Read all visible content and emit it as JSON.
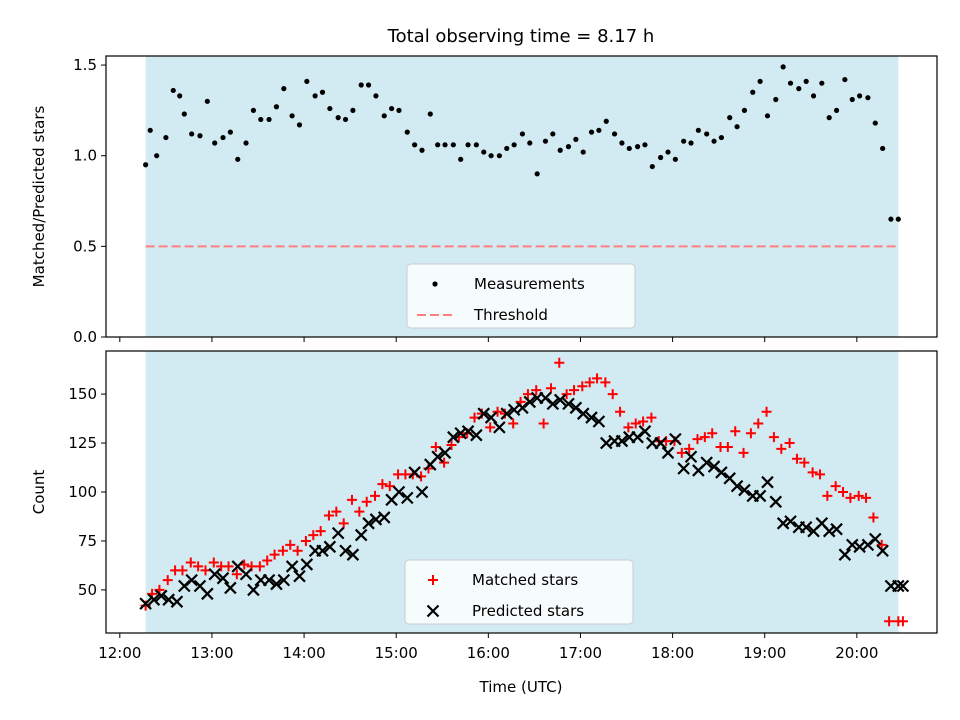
{
  "title": "Total observing time = 8.17 h",
  "xlabel": "Time (UTC)",
  "colors": {
    "band": "#add8e6",
    "threshold": "#ff7f7f",
    "matched": "#ff0000",
    "predicted": "#000000",
    "measurements": "#000000"
  },
  "chart_data": [
    {
      "type": "scatter",
      "ylabel": "Matched/Predicted stars",
      "ylim": [
        0,
        1.55
      ],
      "xlim": [
        11.85,
        20.87
      ],
      "yticks": [
        0.0,
        0.5,
        1.0,
        1.5
      ],
      "ytick_labels": [
        "0.0",
        "0.5",
        "1.0",
        "1.5"
      ],
      "observing_window": [
        12.28,
        20.45
      ],
      "threshold": 0.5,
      "legend_position": "lower-center",
      "series": [
        {
          "name": "Measurements",
          "marker": "dot",
          "x": [
            12.28,
            12.33,
            12.4,
            12.5,
            12.58,
            12.65,
            12.7,
            12.78,
            12.87,
            12.95,
            13.03,
            13.12,
            13.2,
            13.28,
            13.37,
            13.45,
            13.53,
            13.62,
            13.7,
            13.78,
            13.87,
            13.95,
            14.03,
            14.12,
            14.2,
            14.28,
            14.37,
            14.45,
            14.53,
            14.62,
            14.7,
            14.78,
            14.87,
            14.95,
            15.03,
            15.12,
            15.2,
            15.28,
            15.37,
            15.45,
            15.53,
            15.62,
            15.7,
            15.78,
            15.87,
            15.95,
            16.03,
            16.12,
            16.2,
            16.28,
            16.37,
            16.45,
            16.53,
            16.62,
            16.7,
            16.78,
            16.87,
            16.95,
            17.03,
            17.12,
            17.2,
            17.28,
            17.37,
            17.45,
            17.53,
            17.62,
            17.7,
            17.78,
            17.87,
            17.95,
            18.03,
            18.12,
            18.2,
            18.28,
            18.37,
            18.45,
            18.53,
            18.62,
            18.7,
            18.78,
            18.87,
            18.95,
            19.03,
            19.12,
            19.2,
            19.28,
            19.37,
            19.45,
            19.53,
            19.62,
            19.7,
            19.78,
            19.87,
            19.95,
            20.03,
            20.12,
            20.2,
            20.28,
            20.37,
            20.45
          ],
          "y": [
            0.95,
            1.14,
            1.0,
            1.1,
            1.36,
            1.33,
            1.23,
            1.12,
            1.11,
            1.3,
            1.07,
            1.1,
            1.13,
            0.98,
            1.07,
            1.25,
            1.2,
            1.2,
            1.27,
            1.37,
            1.22,
            1.17,
            1.41,
            1.33,
            1.35,
            1.26,
            1.21,
            1.2,
            1.25,
            1.39,
            1.39,
            1.33,
            1.22,
            1.26,
            1.25,
            1.13,
            1.06,
            1.03,
            1.23,
            1.06,
            1.06,
            1.06,
            0.98,
            1.06,
            1.06,
            1.02,
            1.0,
            1.0,
            1.04,
            1.06,
            1.12,
            1.07,
            0.9,
            1.08,
            1.12,
            1.03,
            1.05,
            1.09,
            1.02,
            1.13,
            1.14,
            1.19,
            1.12,
            1.07,
            1.04,
            1.05,
            1.06,
            0.94,
            0.99,
            1.02,
            0.98,
            1.08,
            1.07,
            1.14,
            1.12,
            1.08,
            1.1,
            1.21,
            1.16,
            1.25,
            1.35,
            1.41,
            1.22,
            1.31,
            1.49,
            1.4,
            1.37,
            1.41,
            1.33,
            1.4,
            1.21,
            1.25,
            1.42,
            1.31,
            1.33,
            1.32,
            1.18,
            1.04,
            0.65,
            0.65
          ]
        },
        {
          "name": "Threshold",
          "marker": "dashed-line"
        }
      ]
    },
    {
      "type": "scatter",
      "ylabel": "Count",
      "ylim": [
        28,
        172
      ],
      "xlim": [
        11.85,
        20.87
      ],
      "yticks": [
        50,
        75,
        100,
        125,
        150
      ],
      "ytick_labels": [
        "50",
        "75",
        "100",
        "125",
        "150"
      ],
      "xticks": [
        12,
        13,
        14,
        15,
        16,
        17,
        18,
        19,
        20
      ],
      "xtick_labels": [
        "12:00",
        "13:00",
        "14:00",
        "15:00",
        "16:00",
        "17:00",
        "18:00",
        "19:00",
        "20:00"
      ],
      "observing_window": [
        12.28,
        20.45
      ],
      "legend_position": "lower-center",
      "series": [
        {
          "name": "Matched stars",
          "marker": "plus",
          "x": [
            12.28,
            12.35,
            12.43,
            12.52,
            12.6,
            12.68,
            12.77,
            12.85,
            12.93,
            13.02,
            13.1,
            13.18,
            13.27,
            13.35,
            13.43,
            13.52,
            13.6,
            13.68,
            13.77,
            13.85,
            13.93,
            14.02,
            14.1,
            14.18,
            14.27,
            14.35,
            14.43,
            14.52,
            14.6,
            14.68,
            14.77,
            14.85,
            14.93,
            15.02,
            15.1,
            15.18,
            15.27,
            15.35,
            15.43,
            15.52,
            15.6,
            15.68,
            15.77,
            15.85,
            15.93,
            16.02,
            16.1,
            16.18,
            16.27,
            16.35,
            16.43,
            16.52,
            16.6,
            16.68,
            16.77,
            16.85,
            16.93,
            17.02,
            17.1,
            17.18,
            17.27,
            17.35,
            17.43,
            17.52,
            17.6,
            17.68,
            17.77,
            17.85,
            17.93,
            18.02,
            18.1,
            18.18,
            18.27,
            18.35,
            18.43,
            18.52,
            18.6,
            18.68,
            18.77,
            18.85,
            18.93,
            19.02,
            19.1,
            19.18,
            19.27,
            19.35,
            19.43,
            19.52,
            19.6,
            19.68,
            19.77,
            19.85,
            19.93,
            20.02,
            20.1,
            20.18,
            20.27,
            20.35,
            20.45,
            20.5
          ],
          "y": [
            42,
            48,
            50,
            55,
            60,
            60,
            64,
            62,
            60,
            64,
            62,
            62,
            58,
            63,
            62,
            62,
            65,
            68,
            70,
            73,
            70,
            75,
            78,
            80,
            88,
            90,
            84,
            96,
            90,
            95,
            98,
            104,
            103,
            109,
            109,
            109,
            108,
            112,
            123,
            115,
            124,
            128,
            130,
            138,
            140,
            133,
            141,
            140,
            135,
            146,
            150,
            152,
            135,
            153,
            166,
            150,
            152,
            154,
            156,
            158,
            156,
            150,
            141,
            133,
            135,
            136,
            138,
            126,
            126,
            126,
            120,
            122,
            127,
            128,
            130,
            123,
            123,
            131,
            120,
            130,
            135,
            141,
            128,
            122,
            125,
            117,
            115,
            110,
            109,
            98,
            103,
            100,
            97,
            98,
            97,
            87,
            73,
            34,
            34,
            34
          ]
        },
        {
          "name": "Predicted stars",
          "marker": "x",
          "x": [
            12.28,
            12.37,
            12.45,
            12.53,
            12.62,
            12.7,
            12.78,
            12.87,
            12.95,
            13.03,
            13.12,
            13.2,
            13.28,
            13.37,
            13.45,
            13.53,
            13.62,
            13.7,
            13.78,
            13.87,
            13.95,
            14.03,
            14.12,
            14.2,
            14.28,
            14.37,
            14.45,
            14.53,
            14.62,
            14.7,
            14.78,
            14.87,
            14.95,
            15.03,
            15.12,
            15.2,
            15.28,
            15.37,
            15.45,
            15.53,
            15.62,
            15.7,
            15.78,
            15.87,
            15.95,
            16.03,
            16.12,
            16.2,
            16.28,
            16.37,
            16.45,
            16.53,
            16.62,
            16.7,
            16.78,
            16.87,
            16.95,
            17.03,
            17.12,
            17.2,
            17.28,
            17.37,
            17.45,
            17.53,
            17.62,
            17.7,
            17.78,
            17.87,
            17.95,
            18.03,
            18.12,
            18.2,
            18.28,
            18.37,
            18.45,
            18.53,
            18.62,
            18.7,
            18.78,
            18.87,
            18.95,
            19.03,
            19.12,
            19.2,
            19.28,
            19.37,
            19.45,
            19.53,
            19.62,
            19.7,
            19.78,
            19.87,
            19.95,
            20.03,
            20.12,
            20.2,
            20.28,
            20.37,
            20.45,
            20.5
          ],
          "y": [
            43,
            45,
            47,
            45,
            44,
            52,
            55,
            52,
            48,
            58,
            56,
            51,
            62,
            58,
            50,
            55,
            55,
            53,
            55,
            62,
            57,
            63,
            70,
            70,
            72,
            79,
            70,
            68,
            78,
            84,
            86,
            87,
            96,
            100,
            97,
            110,
            100,
            114,
            118,
            120,
            128,
            130,
            131,
            129,
            140,
            138,
            133,
            140,
            142,
            143,
            146,
            148,
            148,
            145,
            147,
            145,
            143,
            140,
            138,
            136,
            125,
            126,
            126,
            128,
            128,
            131,
            125,
            125,
            120,
            127,
            112,
            118,
            111,
            115,
            113,
            110,
            107,
            103,
            101,
            98,
            98,
            105,
            95,
            84,
            85,
            82,
            82,
            80,
            84,
            80,
            81,
            68,
            73,
            72,
            73,
            76,
            70,
            52,
            52,
            52
          ]
        }
      ]
    }
  ]
}
